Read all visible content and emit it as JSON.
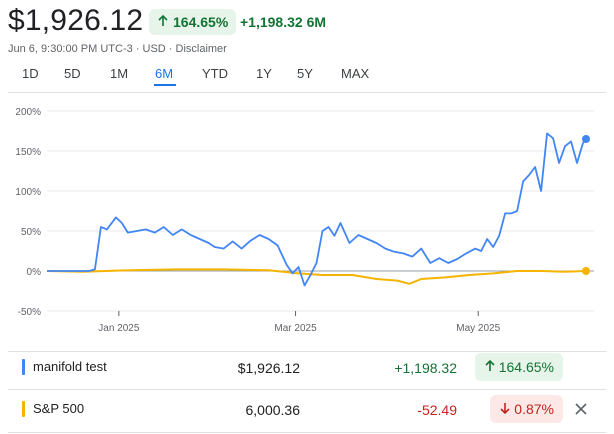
{
  "header": {
    "price": "$1,926.12",
    "pct_change": "164.65%",
    "abs_change": "+1,198.32",
    "period": "6M",
    "meta": "Jun 6, 9:30:00 PM UTC-3 · USD · Disclaimer"
  },
  "tabs": [
    {
      "label": "1D"
    },
    {
      "label": "5D"
    },
    {
      "label": "1M"
    },
    {
      "label": "6M"
    },
    {
      "label": "YTD"
    },
    {
      "label": "1Y"
    },
    {
      "label": "5Y"
    },
    {
      "label": "MAX"
    }
  ],
  "active_tab": "6M",
  "colors": {
    "up": "#137333",
    "down": "#c5221f",
    "series1": "#4285f4",
    "series2": "#f4b400"
  },
  "chart_data": {
    "type": "line",
    "x_ticks": [
      "Jan 2025",
      "Mar 2025",
      "May 2025"
    ],
    "y_ticks": [
      "200%",
      "150%",
      "100%",
      "50%",
      "0%",
      "-50%"
    ],
    "y_tick_values": [
      200,
      150,
      100,
      50,
      0,
      -50
    ],
    "ylim": [
      -50,
      200
    ],
    "grid": true,
    "series": [
      {
        "name": "manifold test",
        "color": "#4285f4",
        "x": [
          "2024-12-08",
          "2024-12-16",
          "2024-12-22",
          "2024-12-24",
          "2024-12-26",
          "2024-12-28",
          "2024-12-31",
          "2025-01-02",
          "2025-01-04",
          "2025-01-07",
          "2025-01-10",
          "2025-01-13",
          "2025-01-16",
          "2025-01-19",
          "2025-01-22",
          "2025-01-25",
          "2025-01-28",
          "2025-01-31",
          "2025-02-02",
          "2025-02-05",
          "2025-02-08",
          "2025-02-11",
          "2025-02-14",
          "2025-02-17",
          "2025-02-20",
          "2025-02-23",
          "2025-02-26",
          "2025-02-28",
          "2025-03-02",
          "2025-03-04",
          "2025-03-06",
          "2025-03-08",
          "2025-03-10",
          "2025-03-12",
          "2025-03-14",
          "2025-03-16",
          "2025-03-19",
          "2025-03-22",
          "2025-03-25",
          "2025-03-28",
          "2025-03-31",
          "2025-04-03",
          "2025-04-06",
          "2025-04-09",
          "2025-04-12",
          "2025-04-15",
          "2025-04-18",
          "2025-04-21",
          "2025-04-24",
          "2025-04-27",
          "2025-04-30",
          "2025-05-02",
          "2025-05-04",
          "2025-05-06",
          "2025-05-08",
          "2025-05-10",
          "2025-05-12",
          "2025-05-14",
          "2025-05-16",
          "2025-05-18",
          "2025-05-20",
          "2025-05-22",
          "2025-05-24",
          "2025-05-26",
          "2025-05-28",
          "2025-05-30",
          "2025-06-01",
          "2025-06-03",
          "2025-06-05",
          "2025-06-06"
        ],
        "values": [
          0,
          0,
          0,
          2,
          55,
          52,
          67,
          60,
          48,
          50,
          52,
          48,
          55,
          45,
          52,
          45,
          40,
          35,
          30,
          28,
          37,
          28,
          38,
          45,
          40,
          32,
          8,
          -3,
          5,
          -18,
          -5,
          10,
          50,
          55,
          44,
          60,
          35,
          45,
          40,
          35,
          28,
          24,
          22,
          18,
          28,
          10,
          16,
          10,
          15,
          22,
          28,
          25,
          40,
          30,
          44,
          72,
          72,
          75,
          112,
          120,
          130,
          100,
          172,
          166,
          135,
          156,
          162,
          135,
          160,
          165
        ]
      },
      {
        "name": "S&P 500",
        "color": "#f4b400",
        "x": [
          "2024-12-08",
          "2024-12-20",
          "2025-01-05",
          "2025-01-20",
          "2025-02-05",
          "2025-02-20",
          "2025-03-02",
          "2025-03-10",
          "2025-03-20",
          "2025-03-28",
          "2025-04-04",
          "2025-04-08",
          "2025-04-12",
          "2025-04-20",
          "2025-04-28",
          "2025-05-06",
          "2025-05-14",
          "2025-05-22",
          "2025-05-30",
          "2025-06-06"
        ],
        "values": [
          0,
          -1,
          1,
          2,
          2,
          1,
          -3,
          -5,
          -5,
          -10,
          -12,
          -16,
          -10,
          -8,
          -5,
          -3,
          0,
          0,
          -1,
          0
        ]
      }
    ]
  },
  "rows": [
    {
      "name": "manifold test",
      "value": "$1,926.12",
      "change": "+1,198.32",
      "pct": "164.65%",
      "direction": "up"
    },
    {
      "name": "S&P 500",
      "value": "6,000.36",
      "change": "-52.49",
      "pct": "0.87%",
      "direction": "down"
    }
  ]
}
